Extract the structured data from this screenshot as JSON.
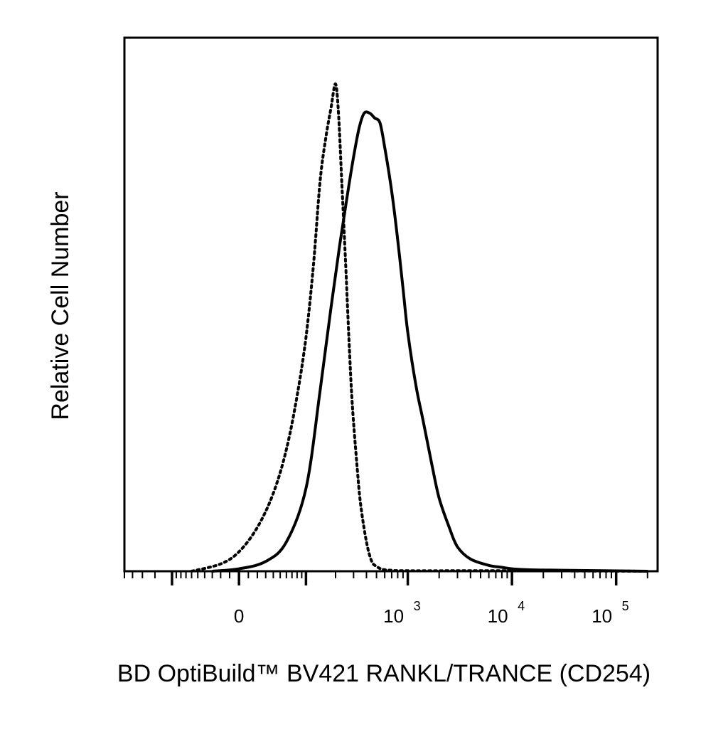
{
  "chart_data": {
    "type": "line",
    "title": "",
    "xlabel": "BD OptiBuild™ BV421 RANKL/TRANCE (CD254)",
    "ylabel": "Relative Cell Number",
    "x_scale": "biexponential",
    "xlim": [
      -300,
      250000
    ],
    "ylim": [
      0,
      100
    ],
    "grid": false,
    "legend": "none",
    "x_tick_labels": [
      {
        "value": 0,
        "base": "0",
        "exp": ""
      },
      {
        "value": 1000,
        "base": "10",
        "exp": "3"
      },
      {
        "value": 10000,
        "base": "10",
        "exp": "4"
      },
      {
        "value": 100000,
        "base": "10",
        "exp": "5"
      }
    ],
    "major_ticks": [
      -100,
      0,
      100,
      1000,
      10000,
      100000
    ],
    "minor_ticks": [
      -300,
      -250,
      -200,
      -150,
      -90,
      -80,
      -70,
      -60,
      -50,
      -40,
      -30,
      -20,
      -10,
      10,
      20,
      30,
      40,
      50,
      60,
      70,
      80,
      90,
      200,
      300,
      400,
      500,
      600,
      700,
      800,
      900,
      2000,
      3000,
      4000,
      5000,
      6000,
      7000,
      8000,
      9000,
      20000,
      30000,
      40000,
      50000,
      60000,
      70000,
      80000,
      90000,
      200000
    ],
    "series": [
      {
        "style": "dotted",
        "color": "#000000",
        "x": [
          -60,
          -20,
          0,
          20,
          40,
          60,
          80,
          100,
          120,
          140,
          160,
          180,
          200,
          215,
          230,
          250,
          270,
          290,
          320,
          350,
          400,
          450,
          500,
          550,
          600,
          700,
          1000,
          10000,
          200000
        ],
        "y": [
          0,
          1.5,
          4,
          9,
          16,
          25,
          36,
          48,
          63,
          80,
          89,
          95,
          100,
          93,
          80,
          64,
          48,
          35,
          23,
          14,
          6,
          2,
          1,
          0.5,
          0.3,
          0.2,
          0.1,
          0.1,
          0
        ]
      },
      {
        "style": "solid",
        "color": "#000000",
        "x": [
          -30,
          0,
          30,
          60,
          100,
          140,
          180,
          220,
          260,
          300,
          340,
          380,
          430,
          480,
          540,
          600,
          700,
          800,
          900,
          1000,
          1200,
          1400,
          1700,
          2000,
          2500,
          3000,
          4000,
          6000,
          8000,
          10000,
          14000,
          30000,
          200000
        ],
        "y": [
          0,
          0.5,
          2,
          6,
          17,
          37,
          54,
          67,
          77,
          85,
          91,
          94,
          94,
          93,
          92,
          87,
          78,
          68,
          58,
          49,
          38,
          31,
          22,
          15,
          9,
          5,
          2.5,
          1.2,
          0.8,
          0.5,
          0.3,
          0.2,
          0
        ]
      }
    ]
  }
}
